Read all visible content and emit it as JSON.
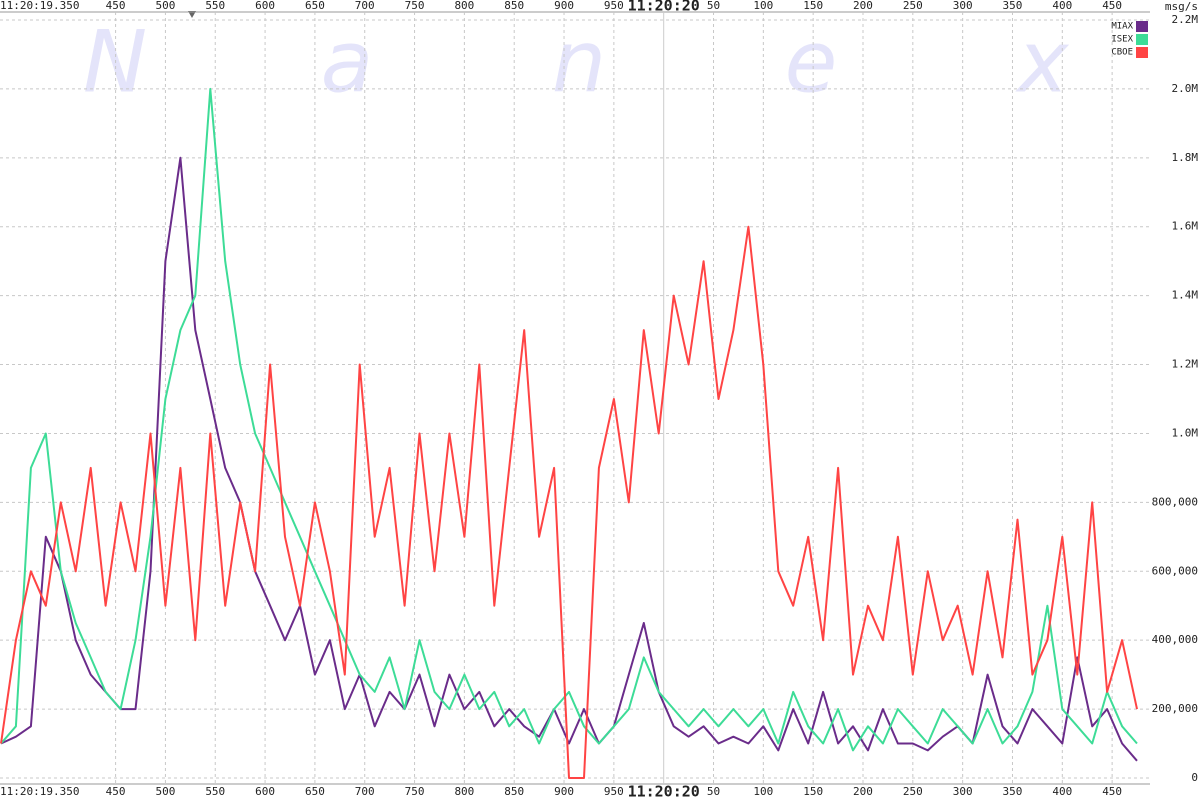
{
  "chart_data": {
    "type": "line",
    "watermark": [
      "N",
      "a",
      "n",
      "e",
      "x"
    ],
    "x_start_label": "11:20:19.350",
    "y_unit_label": "msg/s",
    "legend": "top-right",
    "grid": true,
    "xlim": [
      334,
      1488
    ],
    "ylim": [
      0,
      2200000
    ],
    "xticks": [
      450,
      500,
      550,
      600,
      650,
      700,
      750,
      800,
      850,
      900,
      950,
      {
        "value": 1000,
        "label": "11:20:20"
      },
      {
        "value": 1050,
        "label": "50"
      },
      {
        "value": 1100,
        "label": "100"
      },
      {
        "value": 1150,
        "label": "150"
      },
      {
        "value": 1200,
        "label": "200"
      },
      {
        "value": 1250,
        "label": "250"
      },
      {
        "value": 1300,
        "label": "300"
      },
      {
        "value": 1350,
        "label": "350"
      },
      {
        "value": 1400,
        "label": "400"
      },
      {
        "value": 1450,
        "label": "450"
      }
    ],
    "yticks": [
      0,
      {
        "value": 200000,
        "label": "200,000"
      },
      {
        "value": 400000,
        "label": "400,000"
      },
      {
        "value": 600000,
        "label": "600,000"
      },
      {
        "value": 800000,
        "label": "800,000"
      },
      {
        "value": 1000000,
        "label": "1.0M"
      },
      {
        "value": 1200000,
        "label": "1.2M"
      },
      {
        "value": 1400000,
        "label": "1.4M"
      },
      {
        "value": 1600000,
        "label": "1.6M"
      },
      {
        "value": 1800000,
        "label": "1.8M"
      },
      {
        "value": 2000000,
        "label": "2.0M"
      },
      {
        "value": 2200000,
        "label": "2.2M"
      }
    ],
    "x": [
      335,
      350,
      365,
      380,
      395,
      410,
      425,
      440,
      455,
      470,
      485,
      500,
      515,
      530,
      545,
      560,
      575,
      590,
      605,
      620,
      635,
      650,
      665,
      680,
      695,
      710,
      725,
      740,
      755,
      770,
      785,
      800,
      815,
      830,
      845,
      860,
      875,
      890,
      905,
      920,
      935,
      950,
      965,
      980,
      995,
      1010,
      1025,
      1040,
      1055,
      1070,
      1085,
      1100,
      1115,
      1130,
      1145,
      1160,
      1175,
      1190,
      1205,
      1220,
      1235,
      1250,
      1265,
      1280,
      1295,
      1310,
      1325,
      1340,
      1355,
      1370,
      1385,
      1400,
      1415,
      1430,
      1445,
      1460,
      1475
    ],
    "series": [
      {
        "name": "MIAX",
        "color": "#6a2c8a",
        "values": [
          100000,
          120000,
          150000,
          700000,
          600000,
          400000,
          300000,
          250000,
          200000,
          200000,
          600000,
          1500000,
          1800000,
          1300000,
          1100000,
          900000,
          800000,
          600000,
          500000,
          400000,
          500000,
          300000,
          400000,
          200000,
          300000,
          150000,
          250000,
          200000,
          300000,
          150000,
          300000,
          200000,
          250000,
          150000,
          200000,
          150000,
          120000,
          200000,
          100000,
          200000,
          100000,
          150000,
          300000,
          450000,
          250000,
          150000,
          120000,
          150000,
          100000,
          120000,
          100000,
          150000,
          80000,
          200000,
          100000,
          250000,
          100000,
          150000,
          80000,
          200000,
          100000,
          100000,
          80000,
          120000,
          150000,
          100000,
          300000,
          150000,
          100000,
          200000,
          150000,
          100000,
          350000,
          150000,
          200000,
          100000,
          50000
        ]
      },
      {
        "name": "ISEX",
        "color": "#3ddc97",
        "values": [
          100000,
          150000,
          900000,
          1000000,
          600000,
          450000,
          350000,
          250000,
          200000,
          400000,
          700000,
          1100000,
          1300000,
          1400000,
          2000000,
          1500000,
          1200000,
          1000000,
          900000,
          800000,
          700000,
          600000,
          500000,
          400000,
          300000,
          250000,
          350000,
          200000,
          400000,
          250000,
          200000,
          300000,
          200000,
          250000,
          150000,
          200000,
          100000,
          200000,
          250000,
          150000,
          100000,
          150000,
          200000,
          350000,
          250000,
          200000,
          150000,
          200000,
          150000,
          200000,
          150000,
          200000,
          100000,
          250000,
          150000,
          100000,
          200000,
          80000,
          150000,
          100000,
          200000,
          150000,
          100000,
          200000,
          150000,
          100000,
          200000,
          100000,
          150000,
          250000,
          500000,
          200000,
          150000,
          100000,
          250000,
          150000,
          100000
        ]
      },
      {
        "name": "CBOE",
        "color": "#ff4444",
        "values": [
          100000,
          400000,
          600000,
          500000,
          800000,
          600000,
          900000,
          500000,
          800000,
          600000,
          1000000,
          500000,
          900000,
          400000,
          1000000,
          500000,
          800000,
          600000,
          1200000,
          700000,
          500000,
          800000,
          600000,
          300000,
          1200000,
          700000,
          900000,
          500000,
          1000000,
          600000,
          1000000,
          700000,
          1200000,
          500000,
          900000,
          1300000,
          700000,
          900000,
          0,
          0,
          900000,
          1100000,
          800000,
          1300000,
          1000000,
          1400000,
          1200000,
          1500000,
          1100000,
          1300000,
          1600000,
          1200000,
          600000,
          500000,
          700000,
          400000,
          900000,
          300000,
          500000,
          400000,
          700000,
          300000,
          600000,
          400000,
          500000,
          300000,
          600000,
          350000,
          750000,
          300000,
          400000,
          700000,
          300000,
          800000,
          250000,
          400000,
          200000
        ]
      }
    ]
  }
}
